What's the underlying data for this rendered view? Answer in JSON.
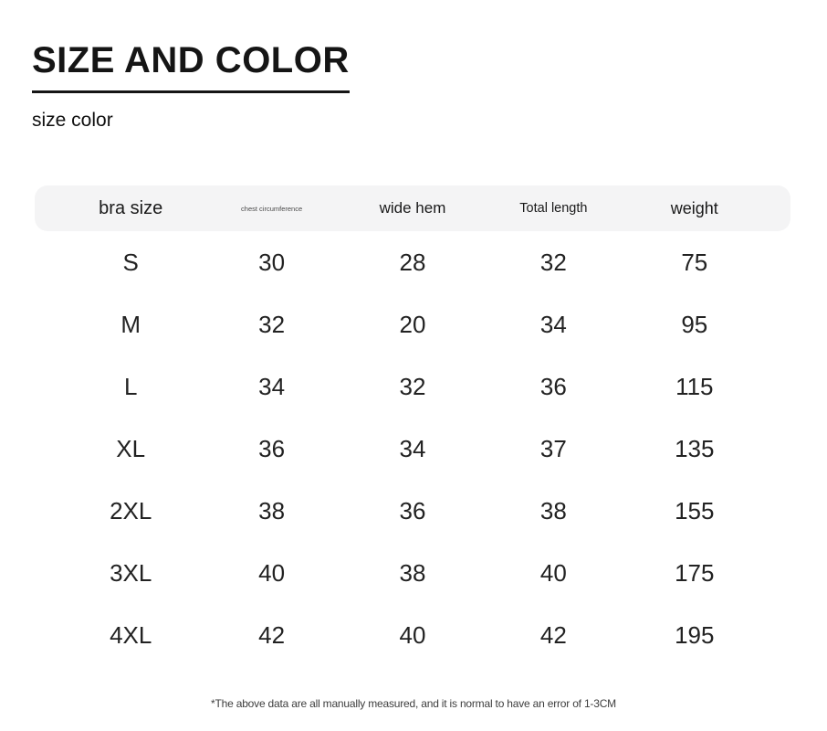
{
  "page": {
    "title": "SIZE AND COLOR",
    "subtitle": "size color",
    "footnote": "*The above data are all manually measured, and it is normal to have an error of 1-3CM"
  },
  "colors": {
    "header_band_bg": "#f4f4f5",
    "text": "#1a1a1a",
    "footnote_text": "#3d3d3d"
  },
  "table": {
    "header": {
      "bra_size": "bra size",
      "chest": "chest circumference",
      "wide_hem": "wide hem",
      "total_length": "Total length",
      "weight": "weight"
    },
    "rows": [
      {
        "size": "S",
        "chest": "30",
        "wide_hem": "28",
        "total_length": "32",
        "weight": "75"
      },
      {
        "size": "M",
        "chest": "32",
        "wide_hem": "20",
        "total_length": "34",
        "weight": "95"
      },
      {
        "size": "L",
        "chest": "34",
        "wide_hem": "32",
        "total_length": "36",
        "weight": "115"
      },
      {
        "size": "XL",
        "chest": "36",
        "wide_hem": "34",
        "total_length": "37",
        "weight": "135"
      },
      {
        "size": "2XL",
        "chest": "38",
        "wide_hem": "36",
        "total_length": "38",
        "weight": "155"
      },
      {
        "size": "3XL",
        "chest": "40",
        "wide_hem": "38",
        "total_length": "40",
        "weight": "175"
      },
      {
        "size": "4XL",
        "chest": "42",
        "wide_hem": "40",
        "total_length": "42",
        "weight": "195"
      }
    ]
  },
  "chart_data": {
    "type": "table",
    "title": "SIZE AND COLOR",
    "columns": [
      "bra size",
      "chest circumference",
      "wide hem",
      "Total length",
      "weight"
    ],
    "rows": [
      [
        "S",
        30,
        28,
        32,
        75
      ],
      [
        "M",
        32,
        20,
        34,
        95
      ],
      [
        "L",
        34,
        32,
        36,
        115
      ],
      [
        "XL",
        36,
        34,
        37,
        135
      ],
      [
        "2XL",
        38,
        36,
        38,
        155
      ],
      [
        "3XL",
        40,
        38,
        40,
        175
      ],
      [
        "4XL",
        42,
        40,
        42,
        195
      ]
    ],
    "note": "*The above data are all manually measured, and it is normal to have an error of 1-3CM"
  }
}
